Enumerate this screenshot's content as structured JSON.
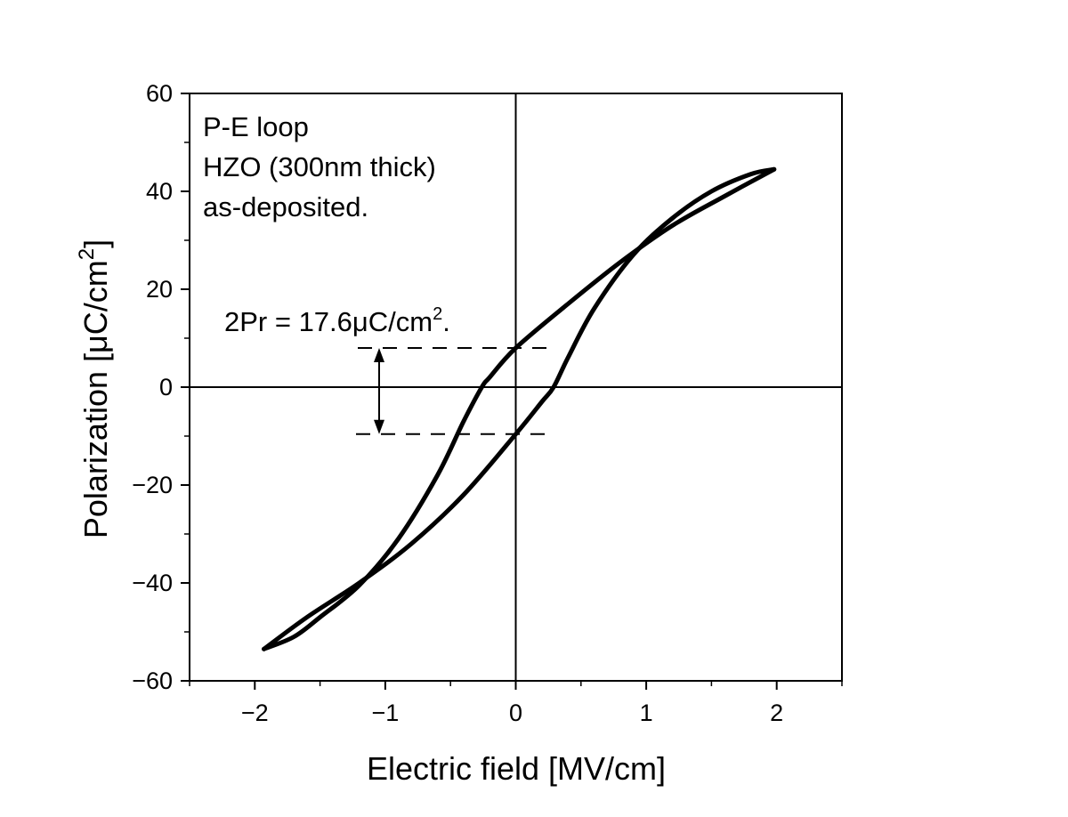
{
  "chart_data": {
    "type": "line",
    "title": "",
    "xlabel": "Electric field [MV/cm]",
    "ylabel": "Polarization [μC/cm²]",
    "ylabel_parts": {
      "text": "Polarization [μC/cm",
      "sup": "2",
      "tail": "]"
    },
    "xlim": [
      -2.5,
      2.5
    ],
    "ylim": [
      -60,
      60
    ],
    "xticks": [
      -2,
      -1,
      0,
      1,
      2
    ],
    "xtick_labels": [
      "−2",
      "−1",
      "0",
      "1",
      "2"
    ],
    "yticks": [
      -60,
      -40,
      -20,
      0,
      20,
      40,
      60
    ],
    "ytick_labels": [
      "−60",
      "−40",
      "−20",
      "0",
      "20",
      "40",
      "60"
    ],
    "grid": false,
    "legend": "none",
    "series": [
      {
        "color": "#000000",
        "branches": [
          {
            "id": "upper-branch",
            "x": [
              1.98,
              1.6,
              1.2,
              0.8,
              0.4,
              0.0,
              -0.2,
              -0.26,
              -0.4,
              -0.6,
              -0.9,
              -1.2,
              -1.5,
              -1.7,
              -1.93
            ],
            "y": [
              44.5,
              39,
              33,
              25.5,
              17,
              8,
              2,
              0,
              -7,
              -18,
              -31,
              -40.5,
              -47,
              -51,
              -53.5
            ]
          },
          {
            "id": "lower-branch",
            "x": [
              -1.93,
              -1.6,
              -1.2,
              -0.8,
              -0.4,
              0.0,
              0.2,
              0.29,
              0.4,
              0.6,
              0.9,
              1.2,
              1.5,
              1.8,
              1.98
            ],
            "y": [
              -53.5,
              -47,
              -40,
              -32,
              -22,
              -9.6,
              -3,
              0,
              6,
              16,
              27,
              34.5,
              40,
              43.5,
              44.5
            ]
          }
        ]
      }
    ],
    "annotations": {
      "label_lines": [
        "P-E loop",
        "HZO (300nm thick)",
        "as-deposited."
      ],
      "pr_text_main": "2Pr = 17.6μC/cm",
      "pr_text_sup": "2",
      "pr_text_tail": ".",
      "pr_upper_y": 8,
      "pr_lower_y": -9.6
    }
  }
}
